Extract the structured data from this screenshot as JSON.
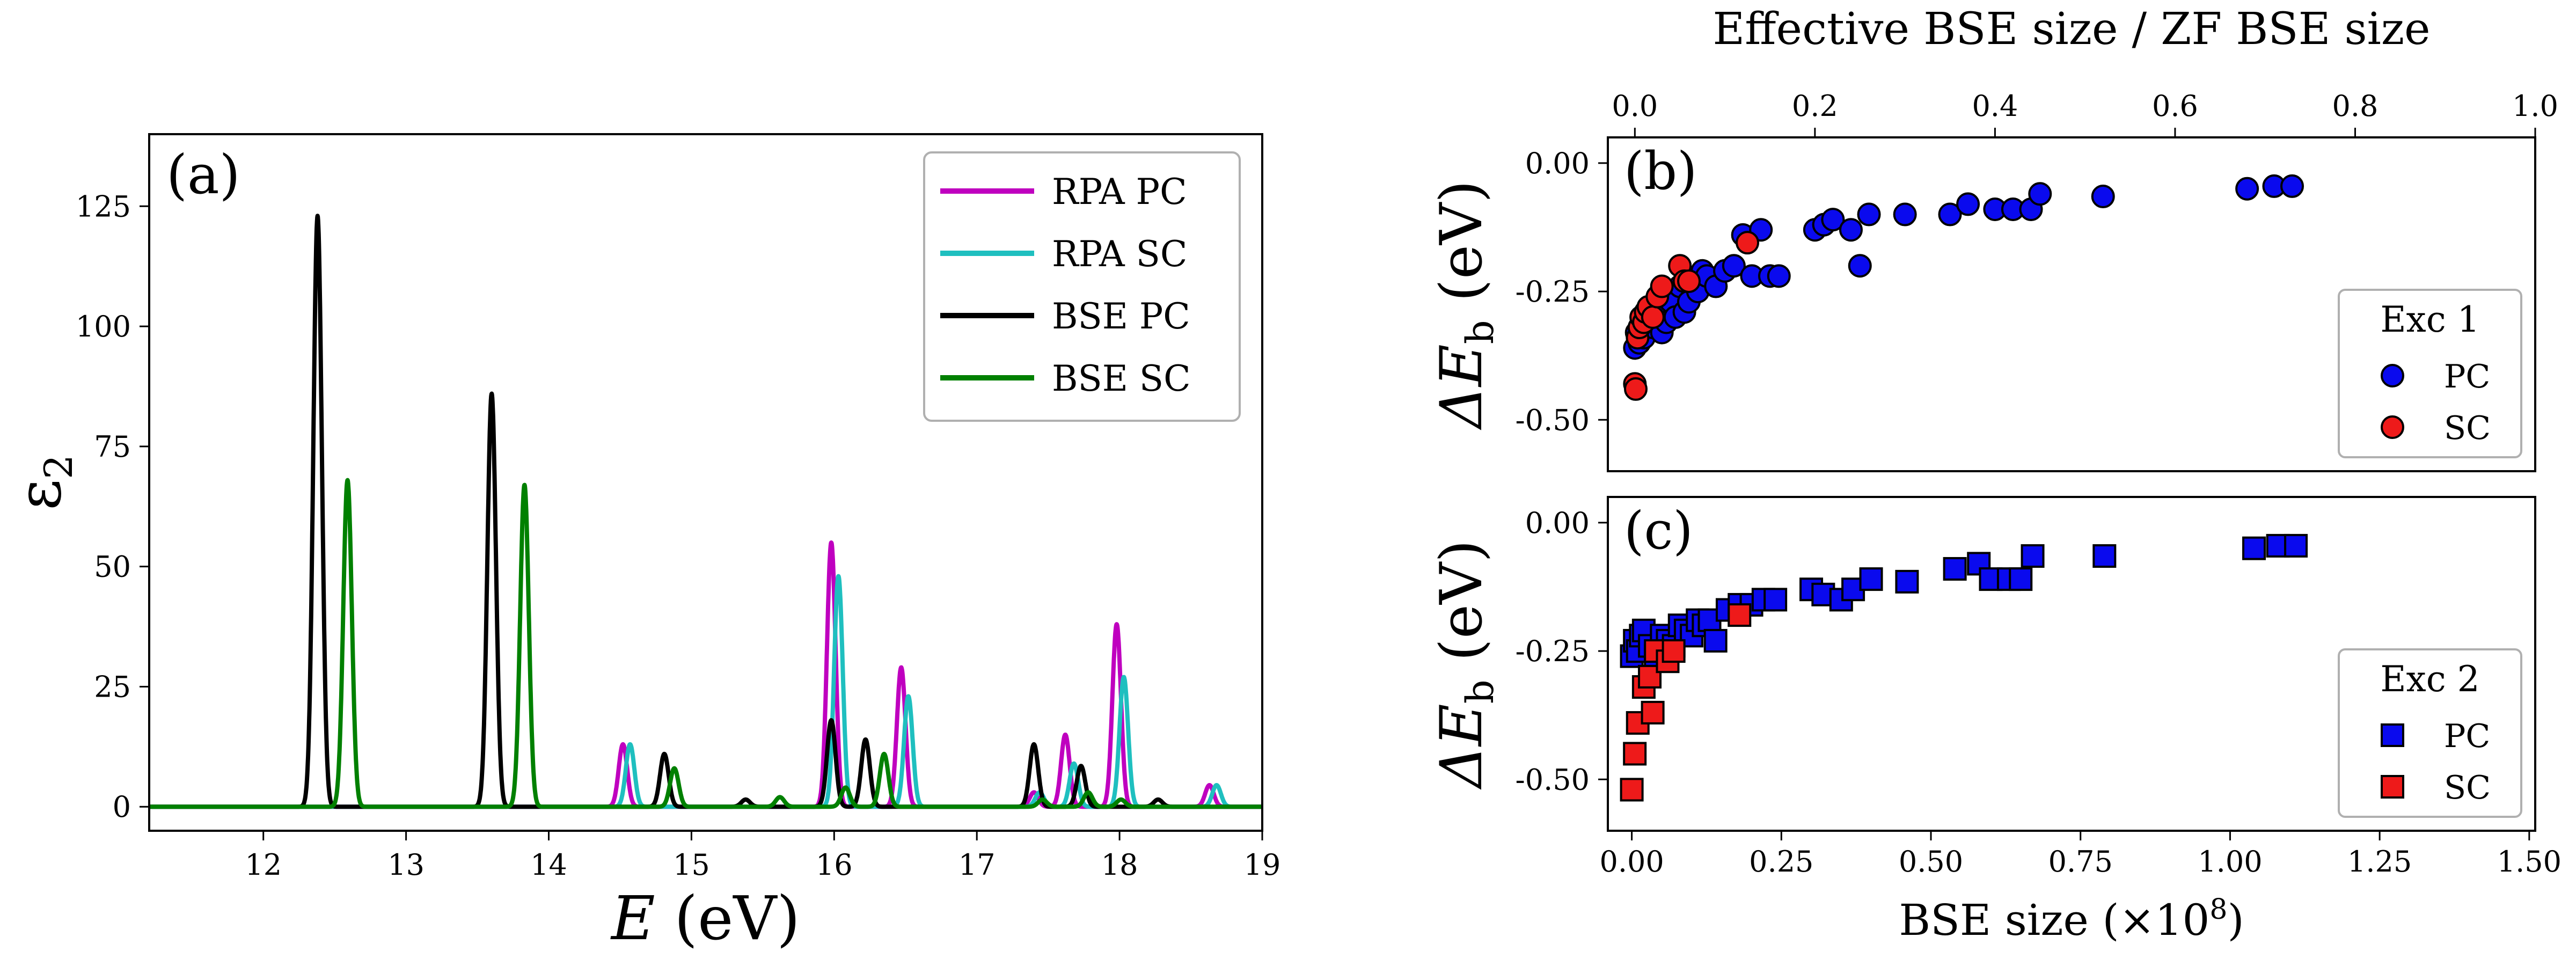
{
  "figure": {
    "background": "#ffffff"
  },
  "chart_data": [
    {
      "id": "a",
      "type": "line",
      "panel_label": "(a)",
      "xlabel_symbol": "E",
      "xlabel_unit": "(eV)",
      "ylabel": "ε",
      "ylabel_sub": "2",
      "xlim": [
        11.2,
        19.0
      ],
      "ylim": [
        -5,
        140
      ],
      "xticks": [
        12,
        13,
        14,
        15,
        16,
        17,
        18,
        19
      ],
      "yticks": [
        0,
        25,
        50,
        75,
        100,
        125
      ],
      "grid": false,
      "legend": "top-right",
      "peak_width_eV": 0.03,
      "series": [
        {
          "name": "RPA PC",
          "color": "#bf00bf",
          "peaks": [
            [
              14.52,
              13
            ],
            [
              15.98,
              55
            ],
            [
              16.47,
              29
            ],
            [
              17.4,
              3
            ],
            [
              17.62,
              15
            ],
            [
              17.98,
              38
            ],
            [
              18.63,
              4.5
            ]
          ]
        },
        {
          "name": "RPA SC",
          "color": "#1fbfbf",
          "peaks": [
            [
              14.57,
              13
            ],
            [
              16.03,
              48
            ],
            [
              16.52,
              23
            ],
            [
              17.44,
              3
            ],
            [
              17.68,
              9
            ],
            [
              18.03,
              27
            ],
            [
              18.68,
              4.5
            ]
          ]
        },
        {
          "name": "BSE PC",
          "color": "#000000",
          "peaks": [
            [
              12.38,
              123
            ],
            [
              13.6,
              86
            ],
            [
              14.81,
              11
            ],
            [
              15.38,
              1.5
            ],
            [
              15.98,
              18
            ],
            [
              16.22,
              14
            ],
            [
              17.4,
              13
            ],
            [
              17.73,
              8.5
            ],
            [
              18.27,
              1.5
            ]
          ]
        },
        {
          "name": "BSE SC",
          "color": "#008000",
          "peaks": [
            [
              12.59,
              68
            ],
            [
              13.83,
              67
            ],
            [
              14.88,
              8
            ],
            [
              15.62,
              2
            ],
            [
              16.08,
              4
            ],
            [
              16.35,
              11
            ],
            [
              17.46,
              1.5
            ],
            [
              17.78,
              3
            ],
            [
              18.01,
              1.5
            ]
          ]
        }
      ]
    },
    {
      "id": "b",
      "type": "scatter",
      "panel_label": "(b)",
      "ylabel_symbol": "ΔE",
      "ylabel_sub": "b",
      "ylabel_unit": "(eV)",
      "top_xlabel": "Effective BSE size / ZF BSE size",
      "top_xlim": [
        -0.03,
        1.0
      ],
      "top_xticks": [
        "0.0",
        "0.2",
        "0.4",
        "0.6",
        "0.8",
        "1.0"
      ],
      "ylim": [
        -0.6,
        0.05
      ],
      "yticks": [
        "0.00",
        "-0.25",
        "-0.50"
      ],
      "legend_title": "Exc 1",
      "legend": "bottom-right",
      "series": [
        {
          "name": "PC",
          "color": "#0a0aee",
          "marker": "circle",
          "points": [
            [
              0.0,
              -0.36
            ],
            [
              0.002,
              -0.33
            ],
            [
              0.005,
              -0.35
            ],
            [
              0.008,
              -0.31
            ],
            [
              0.01,
              -0.34
            ],
            [
              0.015,
              -0.3
            ],
            [
              0.02,
              -0.32
            ],
            [
              0.025,
              -0.29
            ],
            [
              0.03,
              -0.33
            ],
            [
              0.035,
              -0.31
            ],
            [
              0.04,
              -0.27
            ],
            [
              0.045,
              -0.3
            ],
            [
              0.05,
              -0.24
            ],
            [
              0.055,
              -0.29
            ],
            [
              0.06,
              -0.27
            ],
            [
              0.065,
              -0.23
            ],
            [
              0.07,
              -0.25
            ],
            [
              0.075,
              -0.21
            ],
            [
              0.08,
              -0.22
            ],
            [
              0.09,
              -0.24
            ],
            [
              0.1,
              -0.21
            ],
            [
              0.11,
              -0.2
            ],
            [
              0.12,
              -0.14
            ],
            [
              0.13,
              -0.22
            ],
            [
              0.14,
              -0.13
            ],
            [
              0.15,
              -0.22
            ],
            [
              0.16,
              -0.22
            ],
            [
              0.2,
              -0.13
            ],
            [
              0.21,
              -0.12
            ],
            [
              0.22,
              -0.11
            ],
            [
              0.24,
              -0.13
            ],
            [
              0.25,
              -0.2
            ],
            [
              0.26,
              -0.1
            ],
            [
              0.3,
              -0.1
            ],
            [
              0.35,
              -0.1
            ],
            [
              0.37,
              -0.08
            ],
            [
              0.4,
              -0.09
            ],
            [
              0.42,
              -0.09
            ],
            [
              0.44,
              -0.09
            ],
            [
              0.45,
              -0.06
            ],
            [
              0.52,
              -0.065
            ],
            [
              0.68,
              -0.05
            ],
            [
              0.71,
              -0.045
            ],
            [
              0.73,
              -0.045
            ]
          ]
        },
        {
          "name": "SC",
          "color": "#ee1a1a",
          "marker": "circle",
          "points": [
            [
              0.0,
              -0.43
            ],
            [
              0.001,
              -0.44
            ],
            [
              0.003,
              -0.34
            ],
            [
              0.005,
              -0.32
            ],
            [
              0.007,
              -0.3
            ],
            [
              0.01,
              -0.31
            ],
            [
              0.012,
              -0.29
            ],
            [
              0.015,
              -0.28
            ],
            [
              0.02,
              -0.3
            ],
            [
              0.025,
              -0.26
            ],
            [
              0.03,
              -0.24
            ],
            [
              0.05,
              -0.2
            ],
            [
              0.055,
              -0.23
            ],
            [
              0.06,
              -0.23
            ],
            [
              0.125,
              -0.155
            ]
          ]
        }
      ]
    },
    {
      "id": "c",
      "type": "scatter",
      "panel_label": "(c)",
      "ylabel_symbol": "ΔE",
      "ylabel_sub": "b",
      "ylabel_unit": "(eV)",
      "xlabel": "BSE size (×10",
      "xlabel_exp": "8",
      "xlabel_close": ")",
      "xlim": [
        -0.04,
        1.51
      ],
      "xticks": [
        "0.00",
        "0.25",
        "0.50",
        "0.75",
        "1.00",
        "1.25",
        "1.50"
      ],
      "ylim": [
        -0.6,
        0.05
      ],
      "yticks": [
        "0.00",
        "-0.25",
        "-0.50"
      ],
      "legend_title": "Exc 2",
      "legend": "bottom-right",
      "series": [
        {
          "name": "PC",
          "color": "#0a0aee",
          "marker": "square",
          "points": [
            [
              0.0,
              -0.26
            ],
            [
              0.005,
              -0.23
            ],
            [
              0.01,
              -0.25
            ],
            [
              0.015,
              -0.22
            ],
            [
              0.02,
              -0.21
            ],
            [
              0.03,
              -0.24
            ],
            [
              0.04,
              -0.26
            ],
            [
              0.05,
              -0.22
            ],
            [
              0.06,
              -0.23
            ],
            [
              0.07,
              -0.24
            ],
            [
              0.08,
              -0.2
            ],
            [
              0.09,
              -0.21
            ],
            [
              0.1,
              -0.22
            ],
            [
              0.11,
              -0.19
            ],
            [
              0.12,
              -0.2
            ],
            [
              0.13,
              -0.19
            ],
            [
              0.14,
              -0.23
            ],
            [
              0.16,
              -0.17
            ],
            [
              0.18,
              -0.16
            ],
            [
              0.2,
              -0.16
            ],
            [
              0.22,
              -0.15
            ],
            [
              0.24,
              -0.15
            ],
            [
              0.3,
              -0.13
            ],
            [
              0.32,
              -0.14
            ],
            [
              0.35,
              -0.15
            ],
            [
              0.37,
              -0.13
            ],
            [
              0.4,
              -0.11
            ],
            [
              0.46,
              -0.115
            ],
            [
              0.54,
              -0.09
            ],
            [
              0.58,
              -0.08
            ],
            [
              0.6,
              -0.11
            ],
            [
              0.63,
              -0.11
            ],
            [
              0.65,
              -0.11
            ],
            [
              0.67,
              -0.065
            ],
            [
              0.79,
              -0.065
            ],
            [
              1.04,
              -0.05
            ],
            [
              1.08,
              -0.045
            ],
            [
              1.11,
              -0.045
            ]
          ]
        },
        {
          "name": "SC",
          "color": "#ee1a1a",
          "marker": "square",
          "points": [
            [
              0.0,
              -0.52
            ],
            [
              0.005,
              -0.45
            ],
            [
              0.01,
              -0.39
            ],
            [
              0.02,
              -0.32
            ],
            [
              0.03,
              -0.3
            ],
            [
              0.035,
              -0.37
            ],
            [
              0.04,
              -0.25
            ],
            [
              0.06,
              -0.27
            ],
            [
              0.07,
              -0.25
            ],
            [
              0.18,
              -0.18
            ]
          ]
        }
      ]
    }
  ]
}
